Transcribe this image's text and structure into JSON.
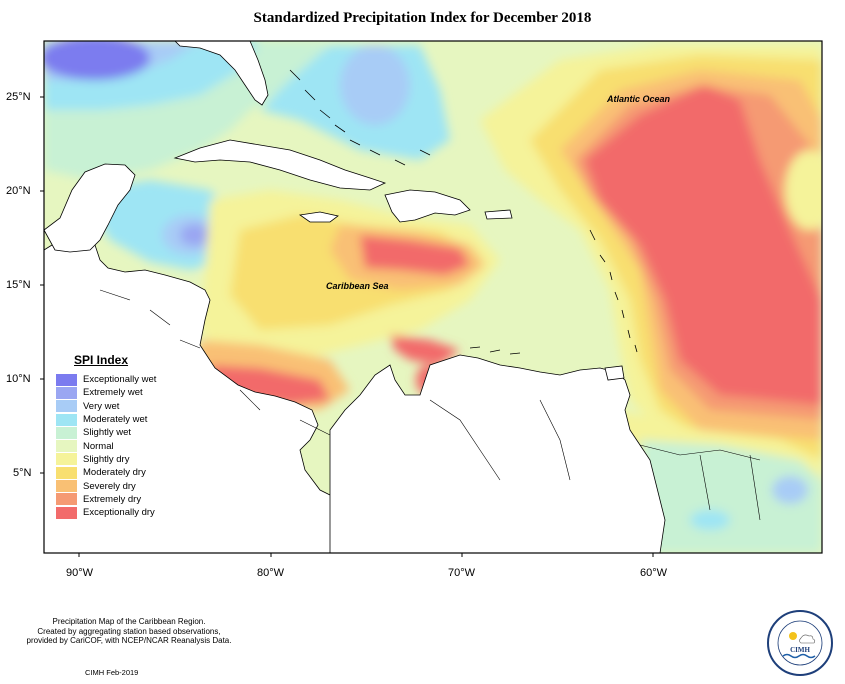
{
  "title": "Standardized Precipitation Index for December 2018",
  "lat_labels": [
    "25°N",
    "20°N",
    "15°N",
    "10°N",
    "5°N"
  ],
  "lon_labels": [
    "90°W",
    "80°W",
    "70°W",
    "60°W"
  ],
  "map_labels": {
    "ocean": "Atlantic Ocean",
    "sea": "Caribbean Sea"
  },
  "legend": {
    "title": "SPI Index",
    "items": [
      {
        "label": "Exceptionally wet",
        "color": "#7b7bef"
      },
      {
        "label": "Extremely wet",
        "color": "#9aa6f2"
      },
      {
        "label": "Very wet",
        "color": "#a8ccf6"
      },
      {
        "label": "Moderately wet",
        "color": "#9ee5f4"
      },
      {
        "label": "Slightly wet",
        "color": "#c8f1d4"
      },
      {
        "label": "Normal",
        "color": "#e6f6c0"
      },
      {
        "label": "Slightly dry",
        "color": "#f5f39a"
      },
      {
        "label": "Moderately dry",
        "color": "#f8df70"
      },
      {
        "label": "Severely dry",
        "color": "#f9c074"
      },
      {
        "label": "Extremely dry",
        "color": "#f59a73"
      },
      {
        "label": "Exceptionally dry",
        "color": "#f26b6b"
      }
    ]
  },
  "footnote": {
    "line1": "Precipitation Map of the Caribbean Region.",
    "line2": "Created by aggregating station based observations,",
    "line3": "provided by CariCOF, with NCEP/NCAR Reanalysis Data."
  },
  "credit": "CIMH Feb-2019",
  "logo": {
    "text": "CIMH"
  }
}
